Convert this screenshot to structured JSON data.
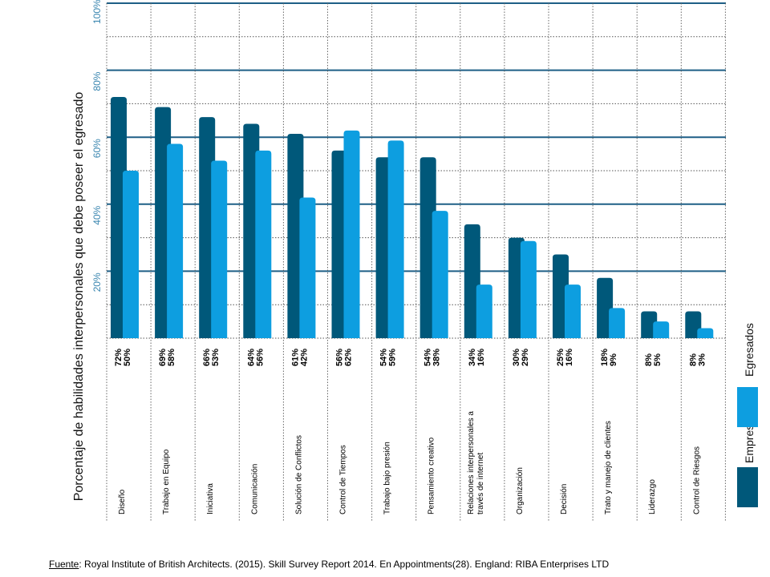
{
  "chart_data": {
    "type": "bar",
    "orientation": "rotated-90",
    "ylabel": "Porcentaje de habilidades interpersonales que debe poseer el egresado",
    "ylim": [
      0,
      100
    ],
    "y_ticks": [
      "20%",
      "40%",
      "60%",
      "80%",
      "100%"
    ],
    "grid": true,
    "legend_position": "right",
    "categories": [
      "Diseño",
      "Trabajo en Equipo",
      "Iniciativa",
      "Comunicación",
      "Solución de Conflictos",
      "Control de Tiempos",
      "Trabajo bajo presión",
      "Pensamiento creativo",
      "Relaciones interpersonales a través de internet",
      "Organización",
      "Decisión",
      "Trato y manejo de clientes",
      "Liderazgo",
      "Control de Riesgos"
    ],
    "category_label_lines": [
      [
        "Diseño"
      ],
      [
        "Trabajo en Equipo"
      ],
      [
        "Iniciativa"
      ],
      [
        "Comunicación"
      ],
      [
        "Solución de Conflictos"
      ],
      [
        "Control de Tiempos"
      ],
      [
        "Trabajo bajo presión"
      ],
      [
        "Pensamiento creativo"
      ],
      [
        "Relaciones interpersonales a",
        "través de internet"
      ],
      [
        "Organización"
      ],
      [
        "Decisión"
      ],
      [
        "Trato y manejo de clientes"
      ],
      [
        "Liderazgo"
      ],
      [
        "Control de Riesgos"
      ]
    ],
    "series": [
      {
        "name": "Empresarios",
        "color": "#00587a",
        "values": [
          72,
          69,
          66,
          64,
          61,
          56,
          54,
          54,
          34,
          30,
          25,
          18,
          8,
          8
        ],
        "value_labels": [
          "72%",
          "69%",
          "66%",
          "64%",
          "61%",
          "56%",
          "54%",
          "54%",
          "34%",
          "30%",
          "25%",
          "18%",
          "8%",
          "8%"
        ]
      },
      {
        "name": "Egresados",
        "color": "#0d9ee0",
        "values": [
          50,
          58,
          53,
          56,
          42,
          62,
          59,
          38,
          16,
          29,
          16,
          9,
          5,
          3
        ],
        "value_labels": [
          "50%",
          "58%",
          "53%",
          "56%",
          "42%",
          "62%",
          "59%",
          "38%",
          "16%",
          "29%",
          "16%",
          "9%",
          "5%",
          "3%"
        ]
      }
    ],
    "colors": {
      "grid_solid": "#1e5f86",
      "grid_dotted": "#555555",
      "tick_label": "#3a86b0",
      "axis_title": "#111111"
    }
  },
  "source": {
    "key": "Fuente",
    "text": ": Royal Institute of British Architects. (2015). Skill Survey Report 2014. En Appointments(28). England: RIBA Enterprises LTD"
  }
}
